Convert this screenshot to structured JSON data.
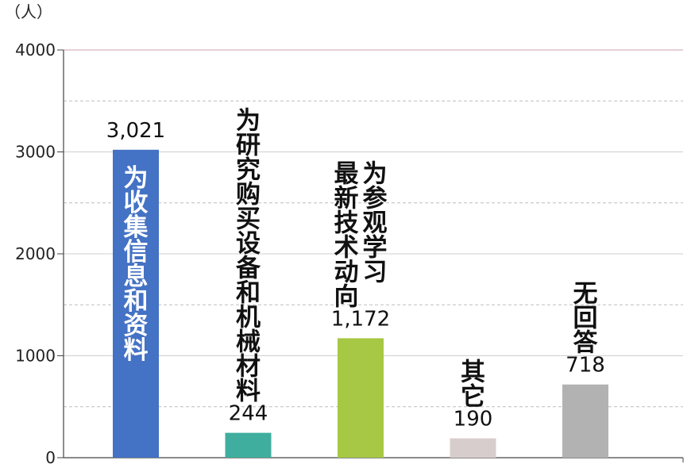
{
  "chart_data": {
    "type": "bar",
    "unit_label": "（人）",
    "categories": [
      "为收集信息和资料",
      "为研究购买设备和机械材料",
      "为参观学习最新技术动向",
      "其它",
      "无回答"
    ],
    "category_lines": [
      [
        "为收集信息和资料"
      ],
      [
        "为研究购买设备和机械材料"
      ],
      [
        "为参观学习",
        "最新技术动向"
      ],
      [
        "其它"
      ],
      [
        "无回答"
      ]
    ],
    "values": [
      3021,
      244,
      1172,
      190,
      718
    ],
    "value_labels": [
      "3,021",
      "244",
      "1,172",
      "190",
      "718"
    ],
    "bar_colors": [
      "#4472c4",
      "#3fae9e",
      "#a6c844",
      "#d8cdcd",
      "#b2b2b2"
    ],
    "ylim": [
      0,
      4000
    ],
    "yticks": [
      0,
      1000,
      2000,
      3000,
      4000
    ],
    "ytick_labels": [
      "0",
      "1000",
      "2000",
      "3000",
      "4000"
    ],
    "minor_gridlines": [
      500,
      1500,
      2500,
      3500
    ],
    "grid": true,
    "legend": "none"
  }
}
